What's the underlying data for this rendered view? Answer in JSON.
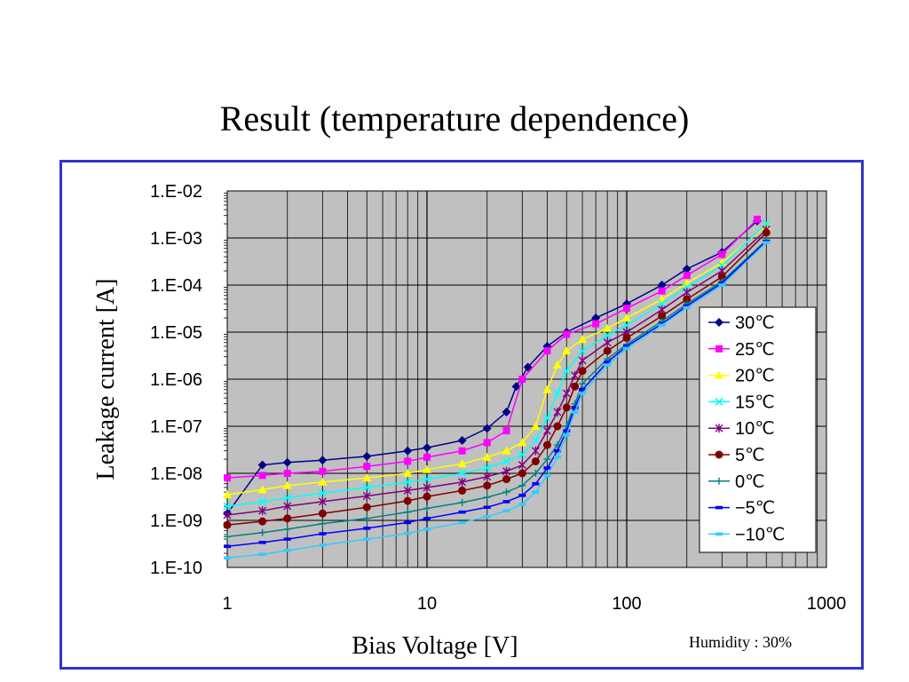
{
  "title": "Result (temperature dependence)",
  "chart_data": {
    "type": "line",
    "xlabel": "Bias Voltage [V]",
    "ylabel": "Leakage current [A]",
    "x_scale": "log",
    "y_scale": "log",
    "xlim": [
      1,
      1000
    ],
    "ylim": [
      1e-10,
      0.01
    ],
    "x_ticks": [
      "1",
      "10",
      "100",
      "1000"
    ],
    "y_ticks": [
      "1.E-10",
      "1.E-09",
      "1.E-08",
      "1.E-07",
      "1.E-06",
      "1.E-05",
      "1.E-04",
      "1.E-03",
      "1.E-02"
    ],
    "grid": true,
    "legend_position": "right",
    "annotation": "Humidity : 30%",
    "series": [
      {
        "name": "30℃",
        "color": "#00008b",
        "marker": "diamond",
        "x": [
          1,
          1.5,
          2,
          3,
          5,
          8,
          10,
          15,
          20,
          25,
          28,
          32,
          40,
          50,
          70,
          100,
          150,
          200,
          300,
          450
        ],
        "y": [
          1.4e-09,
          1.5e-08,
          1.7e-08,
          1.9e-08,
          2.3e-08,
          3e-08,
          3.5e-08,
          5e-08,
          9e-08,
          2e-07,
          7e-07,
          1.8e-06,
          5e-06,
          1e-05,
          2e-05,
          4e-05,
          0.0001,
          0.00022,
          0.0005,
          0.0023
        ]
      },
      {
        "name": "25℃",
        "color": "#ff00ff",
        "marker": "square",
        "x": [
          1,
          1.5,
          2,
          3,
          5,
          8,
          10,
          15,
          20,
          25,
          30,
          40,
          50,
          70,
          100,
          150,
          200,
          300,
          450
        ],
        "y": [
          8e-09,
          9e-09,
          1e-08,
          1.1e-08,
          1.4e-08,
          1.8e-08,
          2.2e-08,
          3e-08,
          4.5e-08,
          8e-08,
          1e-06,
          4e-06,
          9e-06,
          1.5e-05,
          3.2e-05,
          7.5e-05,
          0.00016,
          0.00045,
          0.0025
        ]
      },
      {
        "name": "20℃",
        "color": "#ffff00",
        "marker": "triangle",
        "x": [
          1,
          1.5,
          2,
          3,
          5,
          8,
          10,
          15,
          20,
          25,
          30,
          35,
          40,
          45,
          50,
          60,
          80,
          100,
          150,
          200,
          300,
          500
        ],
        "y": [
          3.5e-09,
          4.5e-09,
          5.5e-09,
          6.5e-09,
          8e-09,
          1e-08,
          1.2e-08,
          1.6e-08,
          2.2e-08,
          3e-08,
          4.5e-08,
          1e-07,
          6e-07,
          2e-06,
          4e-06,
          7e-06,
          1.2e-05,
          2e-05,
          5e-05,
          0.00011,
          0.0003,
          0.0018
        ]
      },
      {
        "name": "15℃",
        "color": "#00ffff",
        "marker": "x",
        "x": [
          1,
          1.5,
          2,
          3,
          5,
          8,
          10,
          15,
          20,
          25,
          30,
          35,
          40,
          45,
          50,
          60,
          80,
          100,
          150,
          200,
          300,
          500
        ],
        "y": [
          2e-09,
          2.5e-09,
          3e-09,
          3.8e-09,
          5e-09,
          6.5e-09,
          7.5e-09,
          1e-08,
          1.3e-08,
          1.8e-08,
          2.5e-08,
          5e-08,
          1.5e-07,
          5e-07,
          1.5e-06,
          4e-06,
          8.5e-06,
          1.4e-05,
          4e-05,
          9e-05,
          0.00026,
          0.002
        ]
      },
      {
        "name": "10℃",
        "color": "#800080",
        "marker": "star",
        "x": [
          1,
          1.5,
          2,
          3,
          5,
          8,
          10,
          15,
          20,
          25,
          30,
          35,
          40,
          45,
          50,
          55,
          60,
          80,
          100,
          150,
          200,
          300,
          500
        ],
        "y": [
          1.3e-09,
          1.6e-09,
          2e-09,
          2.5e-09,
          3.3e-09,
          4.3e-09,
          5e-09,
          6.5e-09,
          8.5e-09,
          1.1e-08,
          1.5e-08,
          3e-08,
          8e-08,
          2e-07,
          5e-07,
          1.2e-06,
          2.5e-06,
          6e-06,
          1e-05,
          3e-05,
          7e-05,
          0.0002,
          0.0015
        ]
      },
      {
        "name": "5℃",
        "color": "#800000",
        "marker": "circle",
        "x": [
          1,
          1.5,
          2,
          3,
          5,
          8,
          10,
          15,
          20,
          25,
          30,
          35,
          40,
          45,
          50,
          55,
          60,
          80,
          100,
          150,
          200,
          300,
          500
        ],
        "y": [
          8e-10,
          9.5e-10,
          1.1e-09,
          1.4e-09,
          1.9e-09,
          2.6e-09,
          3.2e-09,
          4.3e-09,
          5.5e-09,
          7.5e-09,
          1e-08,
          1.8e-08,
          4e-08,
          1e-07,
          2.5e-07,
          7e-07,
          1.5e-06,
          4e-06,
          7.5e-06,
          2.2e-05,
          5e-05,
          0.00015,
          0.0013
        ]
      },
      {
        "name": "0℃",
        "color": "#008080",
        "marker": "plus",
        "x": [
          1,
          1.5,
          2,
          3,
          5,
          8,
          10,
          15,
          20,
          25,
          30,
          35,
          40,
          45,
          50,
          55,
          60,
          80,
          100,
          150,
          200,
          300,
          500
        ],
        "y": [
          4.5e-10,
          5.5e-10,
          6.5e-10,
          8.5e-10,
          1.1e-09,
          1.5e-09,
          1.8e-09,
          2.4e-09,
          3.1e-09,
          4e-09,
          5.5e-09,
          1e-08,
          2e-08,
          4e-08,
          1e-07,
          3e-07,
          8e-07,
          2.7e-06,
          5.5e-06,
          1.7e-05,
          4e-05,
          0.00012,
          0.0009
        ]
      },
      {
        "name": "−5℃",
        "color": "#0000ff",
        "marker": "dash",
        "x": [
          1,
          1.5,
          2,
          3,
          5,
          8,
          10,
          15,
          20,
          25,
          30,
          35,
          40,
          45,
          50,
          55,
          60,
          80,
          100,
          150,
          200,
          300,
          500
        ],
        "y": [
          2.8e-10,
          3.4e-10,
          4e-10,
          5.2e-10,
          6.8e-10,
          9e-10,
          1.1e-09,
          1.5e-09,
          1.9e-09,
          2.5e-09,
          3.4e-09,
          6e-09,
          1.3e-08,
          3e-08,
          8e-08,
          2.5e-07,
          6e-07,
          2.3e-06,
          5e-06,
          1.5e-05,
          3.6e-05,
          0.00011,
          0.00085
        ]
      },
      {
        "name": "−10℃",
        "color": "#33ccff",
        "marker": "dash",
        "x": [
          1,
          1.5,
          2,
          3,
          5,
          8,
          10,
          15,
          20,
          25,
          30,
          35,
          40,
          45,
          50,
          55,
          60,
          80,
          100,
          150,
          200,
          300,
          500
        ],
        "y": [
          1.6e-10,
          1.9e-10,
          2.3e-10,
          3e-10,
          4e-10,
          5.3e-10,
          6.5e-10,
          9e-10,
          1.2e-09,
          1.6e-09,
          2.2e-09,
          4e-09,
          9e-09,
          2.2e-08,
          6.5e-08,
          2e-07,
          5e-07,
          2e-06,
          4.5e-06,
          1.4e-05,
          3.3e-05,
          0.0001,
          0.0008
        ]
      }
    ]
  }
}
